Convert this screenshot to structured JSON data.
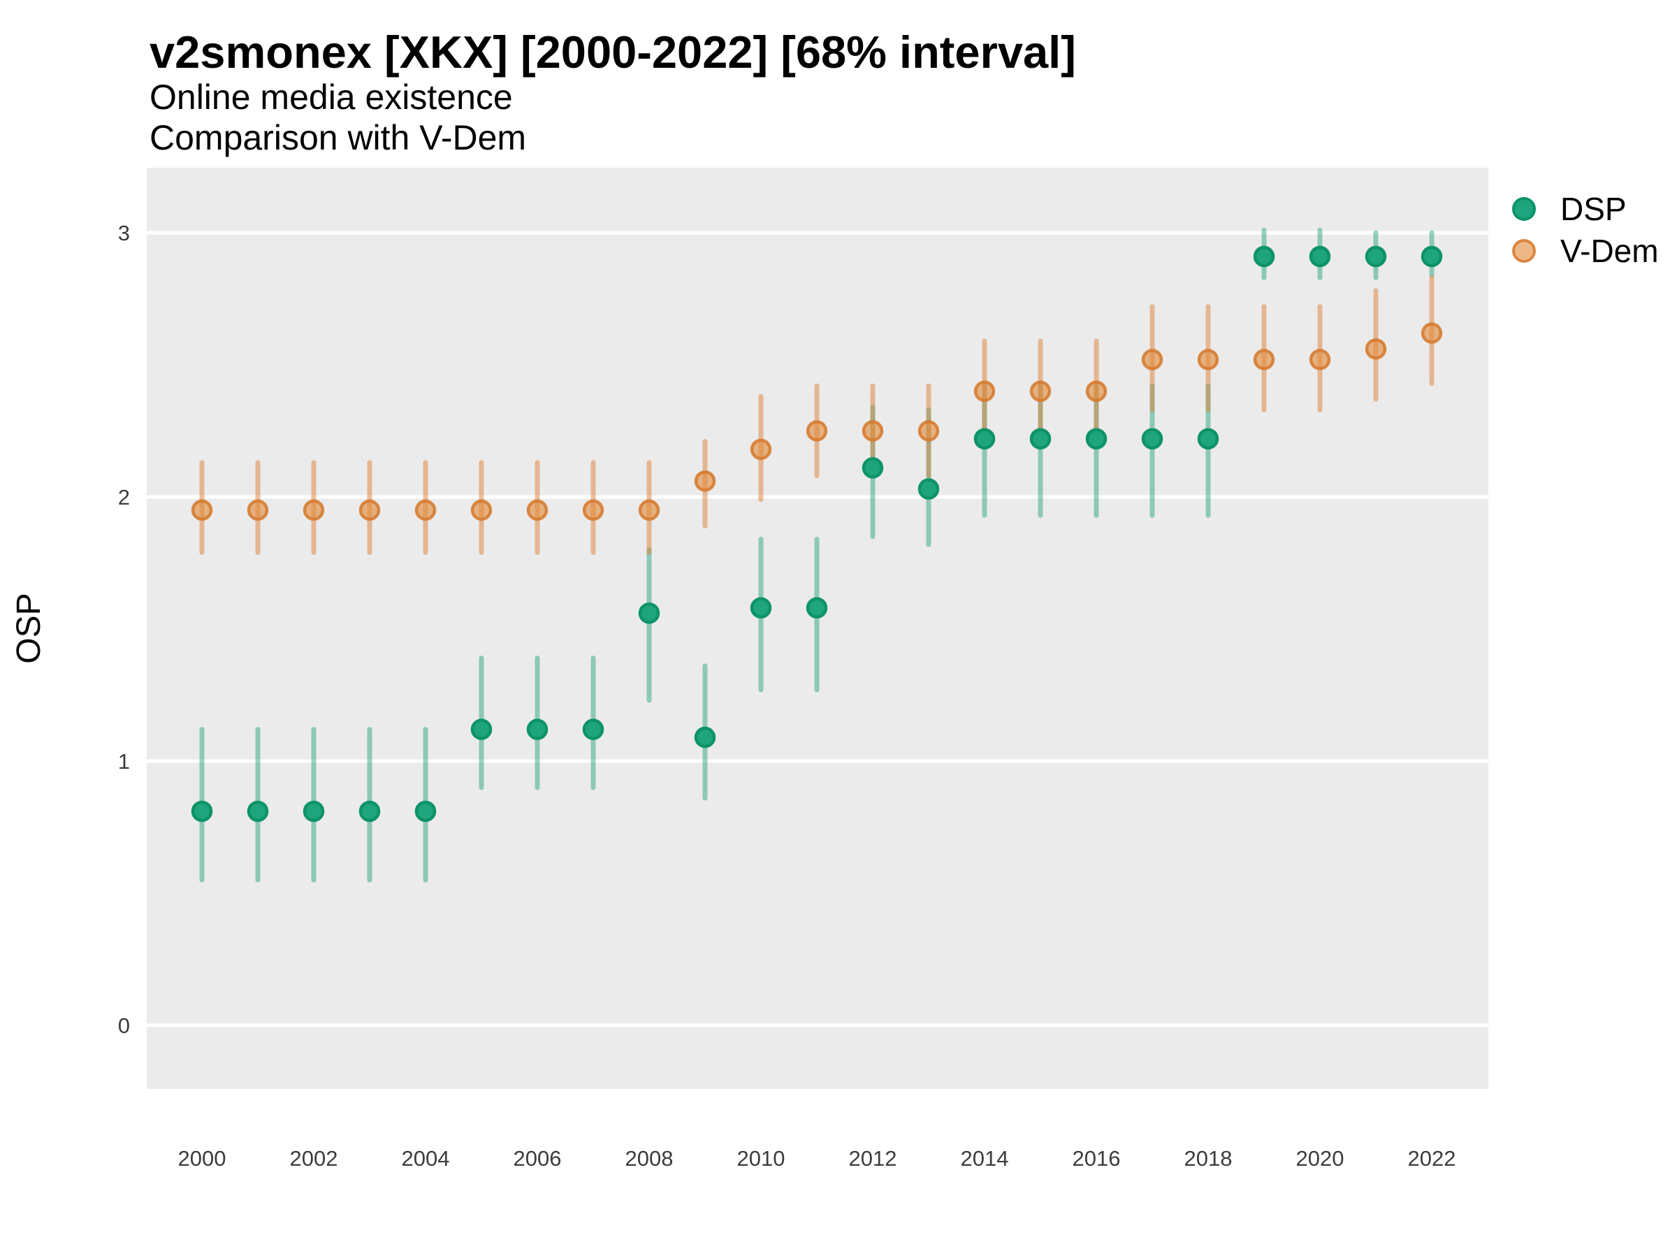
{
  "header": {
    "title": "v2smonex [XKX] [2000-2022] [68% interval]",
    "subtitle1": "Online media existence",
    "subtitle2": "Comparison with V-Dem"
  },
  "axes": {
    "y_label": "OSP",
    "y_ticks": [
      {
        "label": "3",
        "value": 3
      },
      {
        "label": "2",
        "value": 2
      },
      {
        "label": "1",
        "value": 1
      },
      {
        "label": "0",
        "value": 0
      }
    ],
    "x_ticks": [
      {
        "label": "2000",
        "value": 2000
      },
      {
        "label": "2002",
        "value": 2002
      },
      {
        "label": "2004",
        "value": 2004
      },
      {
        "label": "2006",
        "value": 2006
      },
      {
        "label": "2008",
        "value": 2008
      },
      {
        "label": "2010",
        "value": 2010
      },
      {
        "label": "2012",
        "value": 2012
      },
      {
        "label": "2014",
        "value": 2014
      },
      {
        "label": "2016",
        "value": 2016
      },
      {
        "label": "2018",
        "value": 2018
      },
      {
        "label": "2020",
        "value": 2020
      },
      {
        "label": "2022",
        "value": 2022
      }
    ]
  },
  "legend": {
    "items": [
      {
        "label": "DSP"
      },
      {
        "label": "V-Dem"
      }
    ]
  },
  "colors": {
    "panel_bg": "#EBEBEB",
    "grid": "#FFFFFF",
    "tick_text": "#3C3C3C",
    "series": {
      "DSP": {
        "point_fill": "#1FA57E",
        "point_stroke": "#0D9367",
        "whisker": "rgba(27,158,119,0.45)"
      },
      "V-Dem": {
        "point_fill": "rgba(226,138,60,0.62)",
        "point_stroke": "rgba(213,120,42,0.85)",
        "whisker": "rgba(222,128,55,0.5)"
      }
    }
  },
  "chart_data": {
    "type": "scatter",
    "title": "v2smonex [XKX] [2000-2022] [68% interval]",
    "subtitle": "Online media existence — Comparison with V-Dem",
    "xlabel": "",
    "ylabel": "OSP",
    "interval": "68%",
    "ylim": [
      -0.24,
      3.25
    ],
    "xlim": [
      1999,
      2023
    ],
    "grid": "horizontal-white-on-gray",
    "legend_position": "right",
    "series": [
      {
        "name": "DSP",
        "points": [
          {
            "year": 2000,
            "value": 0.81,
            "lo": 0.55,
            "hi": 1.12
          },
          {
            "year": 2001,
            "value": 0.81,
            "lo": 0.55,
            "hi": 1.12
          },
          {
            "year": 2002,
            "value": 0.81,
            "lo": 0.55,
            "hi": 1.12
          },
          {
            "year": 2003,
            "value": 0.81,
            "lo": 0.55,
            "hi": 1.12
          },
          {
            "year": 2004,
            "value": 0.81,
            "lo": 0.55,
            "hi": 1.12
          },
          {
            "year": 2005,
            "value": 1.12,
            "lo": 0.9,
            "hi": 1.39
          },
          {
            "year": 2006,
            "value": 1.12,
            "lo": 0.9,
            "hi": 1.39
          },
          {
            "year": 2007,
            "value": 1.12,
            "lo": 0.9,
            "hi": 1.39
          },
          {
            "year": 2008,
            "value": 1.56,
            "lo": 1.23,
            "hi": 1.8
          },
          {
            "year": 2009,
            "value": 1.09,
            "lo": 0.86,
            "hi": 1.36
          },
          {
            "year": 2010,
            "value": 1.58,
            "lo": 1.27,
            "hi": 1.84
          },
          {
            "year": 2011,
            "value": 1.58,
            "lo": 1.27,
            "hi": 1.84
          },
          {
            "year": 2012,
            "value": 2.11,
            "lo": 1.85,
            "hi": 2.34
          },
          {
            "year": 2013,
            "value": 2.03,
            "lo": 1.82,
            "hi": 2.33
          },
          {
            "year": 2014,
            "value": 2.22,
            "lo": 1.93,
            "hi": 2.42
          },
          {
            "year": 2015,
            "value": 2.22,
            "lo": 1.93,
            "hi": 2.42
          },
          {
            "year": 2016,
            "value": 2.22,
            "lo": 1.93,
            "hi": 2.42
          },
          {
            "year": 2017,
            "value": 2.22,
            "lo": 1.93,
            "hi": 2.42
          },
          {
            "year": 2018,
            "value": 2.22,
            "lo": 1.93,
            "hi": 2.42
          },
          {
            "year": 2019,
            "value": 2.91,
            "lo": 2.83,
            "hi": 3.01
          },
          {
            "year": 2020,
            "value": 2.91,
            "lo": 2.83,
            "hi": 3.01
          },
          {
            "year": 2021,
            "value": 2.91,
            "lo": 2.83,
            "hi": 3.0
          },
          {
            "year": 2022,
            "value": 2.91,
            "lo": 2.84,
            "hi": 3.0
          }
        ]
      },
      {
        "name": "V-Dem",
        "points": [
          {
            "year": 2000,
            "value": 1.95,
            "lo": 1.79,
            "hi": 2.13
          },
          {
            "year": 2001,
            "value": 1.95,
            "lo": 1.79,
            "hi": 2.13
          },
          {
            "year": 2002,
            "value": 1.95,
            "lo": 1.79,
            "hi": 2.13
          },
          {
            "year": 2003,
            "value": 1.95,
            "lo": 1.79,
            "hi": 2.13
          },
          {
            "year": 2004,
            "value": 1.95,
            "lo": 1.79,
            "hi": 2.13
          },
          {
            "year": 2005,
            "value": 1.95,
            "lo": 1.79,
            "hi": 2.13
          },
          {
            "year": 2006,
            "value": 1.95,
            "lo": 1.79,
            "hi": 2.13
          },
          {
            "year": 2007,
            "value": 1.95,
            "lo": 1.79,
            "hi": 2.13
          },
          {
            "year": 2008,
            "value": 1.95,
            "lo": 1.79,
            "hi": 2.13
          },
          {
            "year": 2009,
            "value": 2.06,
            "lo": 1.89,
            "hi": 2.21
          },
          {
            "year": 2010,
            "value": 2.18,
            "lo": 1.99,
            "hi": 2.38
          },
          {
            "year": 2011,
            "value": 2.25,
            "lo": 2.08,
            "hi": 2.42
          },
          {
            "year": 2012,
            "value": 2.25,
            "lo": 2.08,
            "hi": 2.42
          },
          {
            "year": 2013,
            "value": 2.25,
            "lo": 2.08,
            "hi": 2.42
          },
          {
            "year": 2014,
            "value": 2.4,
            "lo": 2.19,
            "hi": 2.59
          },
          {
            "year": 2015,
            "value": 2.4,
            "lo": 2.19,
            "hi": 2.59
          },
          {
            "year": 2016,
            "value": 2.4,
            "lo": 2.19,
            "hi": 2.59
          },
          {
            "year": 2017,
            "value": 2.52,
            "lo": 2.33,
            "hi": 2.72
          },
          {
            "year": 2018,
            "value": 2.52,
            "lo": 2.33,
            "hi": 2.72
          },
          {
            "year": 2019,
            "value": 2.52,
            "lo": 2.33,
            "hi": 2.72
          },
          {
            "year": 2020,
            "value": 2.52,
            "lo": 2.33,
            "hi": 2.72
          },
          {
            "year": 2021,
            "value": 2.56,
            "lo": 2.37,
            "hi": 2.78
          },
          {
            "year": 2022,
            "value": 2.62,
            "lo": 2.43,
            "hi": 2.83
          }
        ]
      }
    ]
  }
}
